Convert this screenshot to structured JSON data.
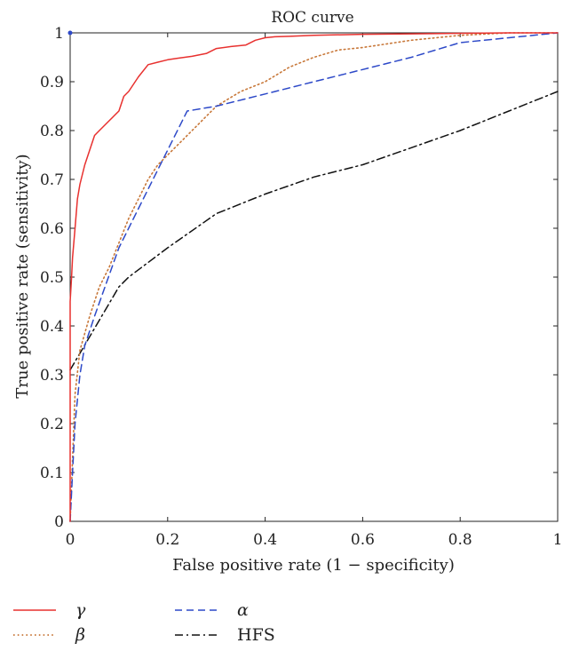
{
  "chart_data": {
    "type": "line",
    "title": "ROC curve",
    "xlabel": "False positive rate (1 − specificity)",
    "ylabel": "True positive rate (sensitivity)",
    "xlim": [
      0,
      1
    ],
    "ylim": [
      0,
      1
    ],
    "xticks": [
      "0",
      "0.2",
      "0.4",
      "0.6",
      "0.8",
      "1"
    ],
    "yticks": [
      "0",
      "0.1",
      "0.2",
      "0.3",
      "0.4",
      "0.5",
      "0.6",
      "0.7",
      "0.8",
      "0.9",
      "1"
    ],
    "grid": false,
    "legend_position": "bottom-left, below plot",
    "series": [
      {
        "name": "γ",
        "color": "#e8312f",
        "style": "solid",
        "x": [
          0,
          0,
          0.003,
          0.005,
          0.01,
          0.015,
          0.02,
          0.03,
          0.04,
          0.05,
          0.06,
          0.07,
          0.08,
          0.09,
          0.1,
          0.11,
          0.12,
          0.14,
          0.16,
          0.18,
          0.2,
          0.22,
          0.25,
          0.28,
          0.3,
          0.33,
          0.36,
          0.38,
          0.4,
          0.42,
          0.45,
          0.5,
          0.6,
          0.7,
          0.8,
          0.9,
          1.0
        ],
        "y": [
          0,
          0.45,
          0.5,
          0.54,
          0.6,
          0.66,
          0.69,
          0.73,
          0.76,
          0.79,
          0.8,
          0.81,
          0.82,
          0.83,
          0.84,
          0.87,
          0.88,
          0.91,
          0.935,
          0.94,
          0.945,
          0.948,
          0.952,
          0.958,
          0.968,
          0.972,
          0.975,
          0.985,
          0.99,
          0.992,
          0.993,
          0.995,
          0.997,
          0.998,
          0.999,
          1.0,
          1.0
        ]
      },
      {
        "name": "β",
        "color": "#c8783a",
        "style": "dotted",
        "x": [
          0,
          0.01,
          0.02,
          0.04,
          0.06,
          0.08,
          0.1,
          0.12,
          0.14,
          0.16,
          0.18,
          0.2,
          0.25,
          0.3,
          0.35,
          0.4,
          0.45,
          0.5,
          0.55,
          0.6,
          0.7,
          0.8,
          0.9,
          1.0
        ],
        "y": [
          0,
          0.26,
          0.35,
          0.42,
          0.48,
          0.52,
          0.57,
          0.62,
          0.66,
          0.7,
          0.73,
          0.75,
          0.8,
          0.85,
          0.88,
          0.9,
          0.93,
          0.95,
          0.965,
          0.97,
          0.985,
          0.995,
          1.0,
          1.0
        ]
      },
      {
        "name": "α",
        "color": "#2d49c8",
        "style": "dashed",
        "x": [
          0,
          0.005,
          0.01,
          0.02,
          0.03,
          0.05,
          0.1,
          0.15,
          0.2,
          0.24,
          0.3,
          0.4,
          0.5,
          0.6,
          0.7,
          0.8,
          0.9,
          1.0
        ],
        "y": [
          0,
          0.1,
          0.2,
          0.3,
          0.36,
          0.42,
          0.56,
          0.66,
          0.76,
          0.84,
          0.85,
          0.875,
          0.9,
          0.925,
          0.95,
          0.98,
          0.99,
          1.0
        ]
      },
      {
        "name": "HFS",
        "color": "#111111",
        "style": "dashdot",
        "x": [
          0,
          0.1,
          0.12,
          0.2,
          0.3,
          0.4,
          0.5,
          0.6,
          0.7,
          0.8,
          0.9,
          1.0
        ],
        "y": [
          0.31,
          0.48,
          0.5,
          0.56,
          0.63,
          0.67,
          0.705,
          0.73,
          0.765,
          0.8,
          0.84,
          0.88
        ]
      }
    ],
    "legend": [
      {
        "label": "γ",
        "series": 0
      },
      {
        "label": "β",
        "series": 1
      },
      {
        "label": "α",
        "series": 2
      },
      {
        "label": "HFS",
        "series": 3
      }
    ]
  }
}
